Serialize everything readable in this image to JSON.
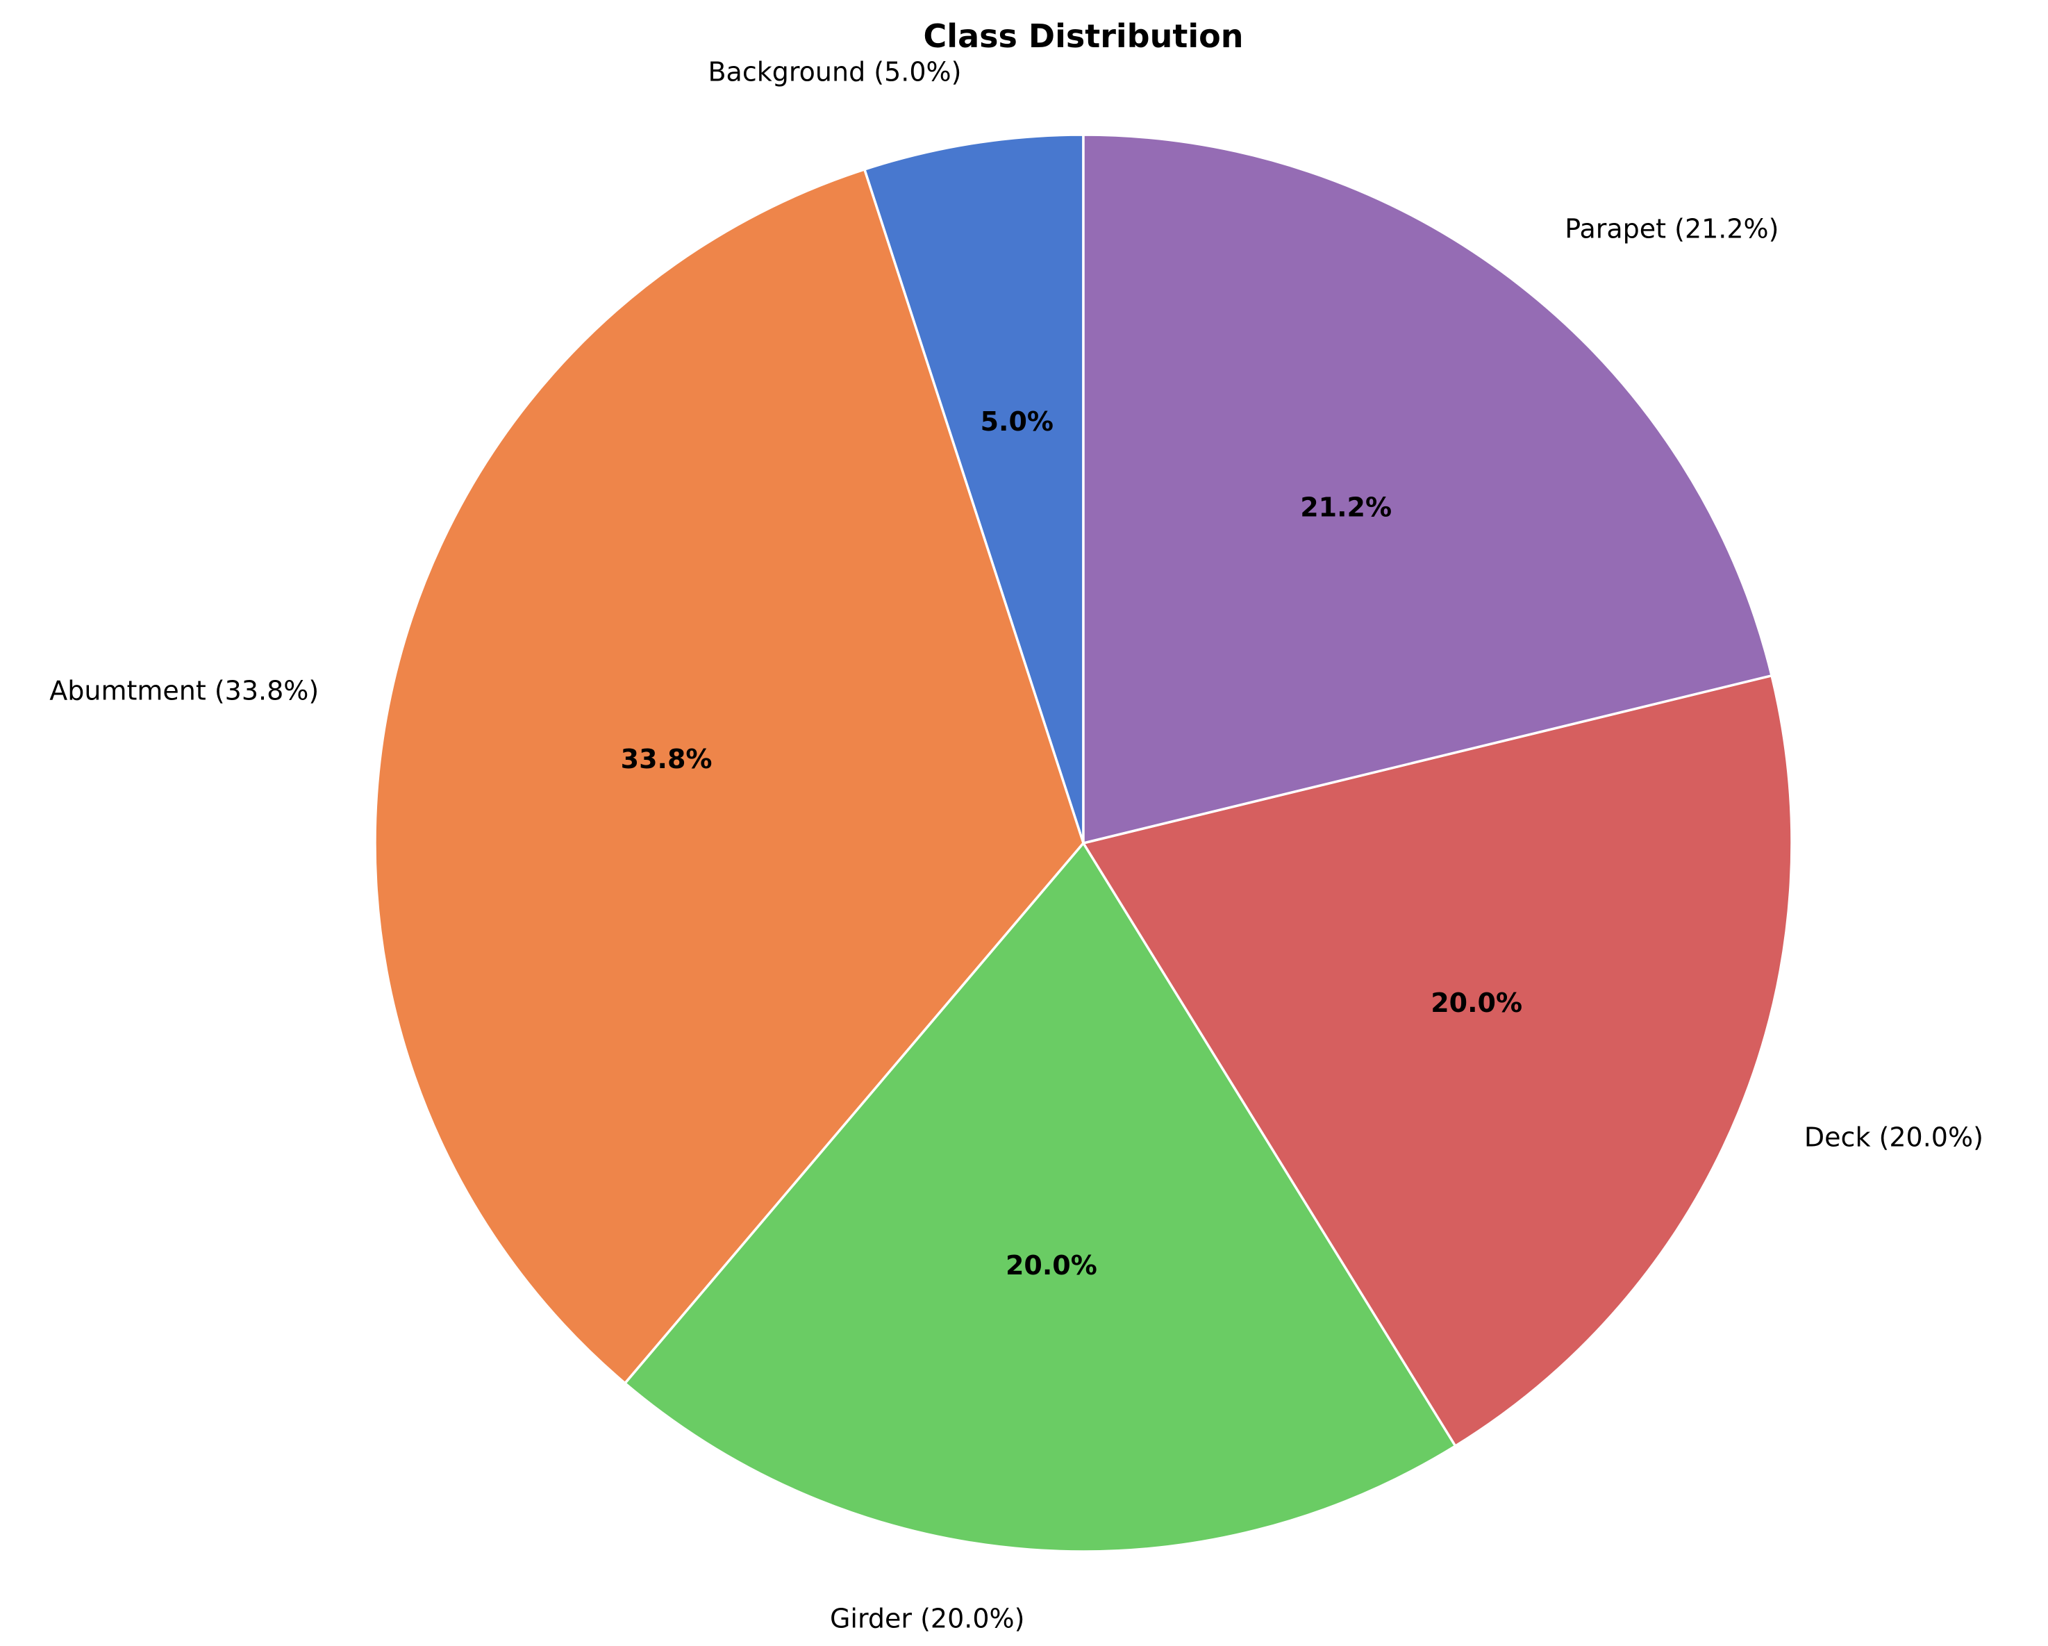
{
  "chart_data": {
    "type": "pie",
    "title": "Class Distribution",
    "start_angle_deg": 90,
    "direction": "counterclockwise",
    "edge_color": "#ffffff",
    "slices": [
      {
        "label": "Background (5.0%)",
        "value": 5.0,
        "pct_label": "5.0%",
        "color": "#4878cf"
      },
      {
        "label": "Abumtment (33.8%)",
        "value": 33.8,
        "pct_label": "33.8%",
        "color": "#ee854a"
      },
      {
        "label": "Girder (20.0%)",
        "value": 20.0,
        "pct_label": "20.0%",
        "color": "#6acc64"
      },
      {
        "label": "Deck (20.0%)",
        "value": 20.0,
        "pct_label": "20.0%",
        "color": "#d65f5f"
      },
      {
        "label": "Parapet (21.2%)",
        "value": 21.2,
        "pct_label": "21.2%",
        "color": "#956cb4"
      }
    ]
  }
}
